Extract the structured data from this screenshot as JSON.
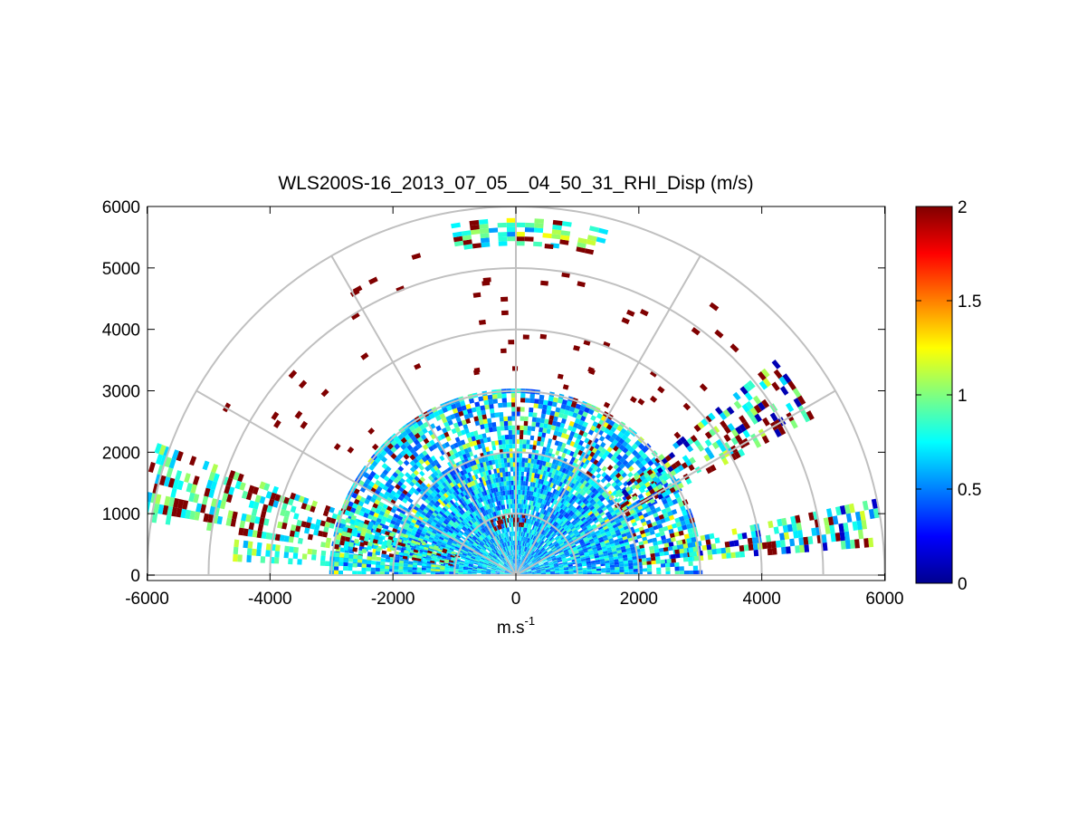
{
  "chart_data": {
    "type": "heatmap",
    "subtype": "polar-sector-rhi",
    "title": "WLS200S-16_2013_07_05__04_50_31_RHI_Disp (m/s)",
    "xlabel": "m.s",
    "xlabel_superscript": "-1",
    "ylabel": "",
    "xlim": [
      -6000,
      6000
    ],
    "ylim": [
      -100,
      6000
    ],
    "xticks": [
      -6000,
      -4000,
      -2000,
      0,
      2000,
      4000,
      6000
    ],
    "xtick_labels": [
      "-6000",
      "-4000",
      "-2000",
      "0",
      "2000",
      "4000",
      "6000"
    ],
    "yticks": [
      0,
      1000,
      2000,
      3000,
      4000,
      5000,
      6000
    ],
    "ytick_labels": [
      "0",
      "1000",
      "2000",
      "3000",
      "4000",
      "5000",
      "6000"
    ],
    "polar_grid": {
      "rings": [
        1000,
        2000,
        3000,
        4000,
        5000,
        6000
      ],
      "spokes_deg": [
        0,
        30,
        60,
        90,
        120,
        150,
        180
      ]
    },
    "colorbar": {
      "colormap": "jet",
      "range": [
        0,
        2
      ],
      "ticks": [
        0,
        0.5,
        1,
        1.5,
        2
      ],
      "tick_labels": [
        "0",
        "0.5",
        "1",
        "1.5",
        "2"
      ]
    },
    "regions": [
      {
        "name": "dense core",
        "range": [
          0,
          3000
        ],
        "elevation_deg": [
          0,
          180
        ],
        "value_range": [
          0.3,
          1.3
        ]
      },
      {
        "name": "left low-elevation band",
        "range": [
          1000,
          6200
        ],
        "elevation_deg": [
          160,
          172
        ],
        "value_range": [
          0.6,
          2
        ]
      },
      {
        "name": "right low-elevation band",
        "range": [
          2500,
          6000
        ],
        "elevation_deg": [
          5,
          12
        ],
        "value_range": [
          0.2,
          2
        ]
      },
      {
        "name": "right oblique band",
        "range": [
          2000,
          5500
        ],
        "elevation_deg": [
          28,
          40
        ],
        "value_range": [
          0.1,
          2
        ]
      },
      {
        "name": "upper arc band",
        "range": [
          5400,
          5800
        ],
        "elevation_deg": [
          75,
          100
        ],
        "value_range": [
          0.5,
          1.3
        ]
      },
      {
        "name": "sparse outliers",
        "range": [
          3000,
          5500
        ],
        "elevation_deg": [
          40,
          150
        ],
        "value_range": [
          2,
          2
        ]
      }
    ]
  }
}
